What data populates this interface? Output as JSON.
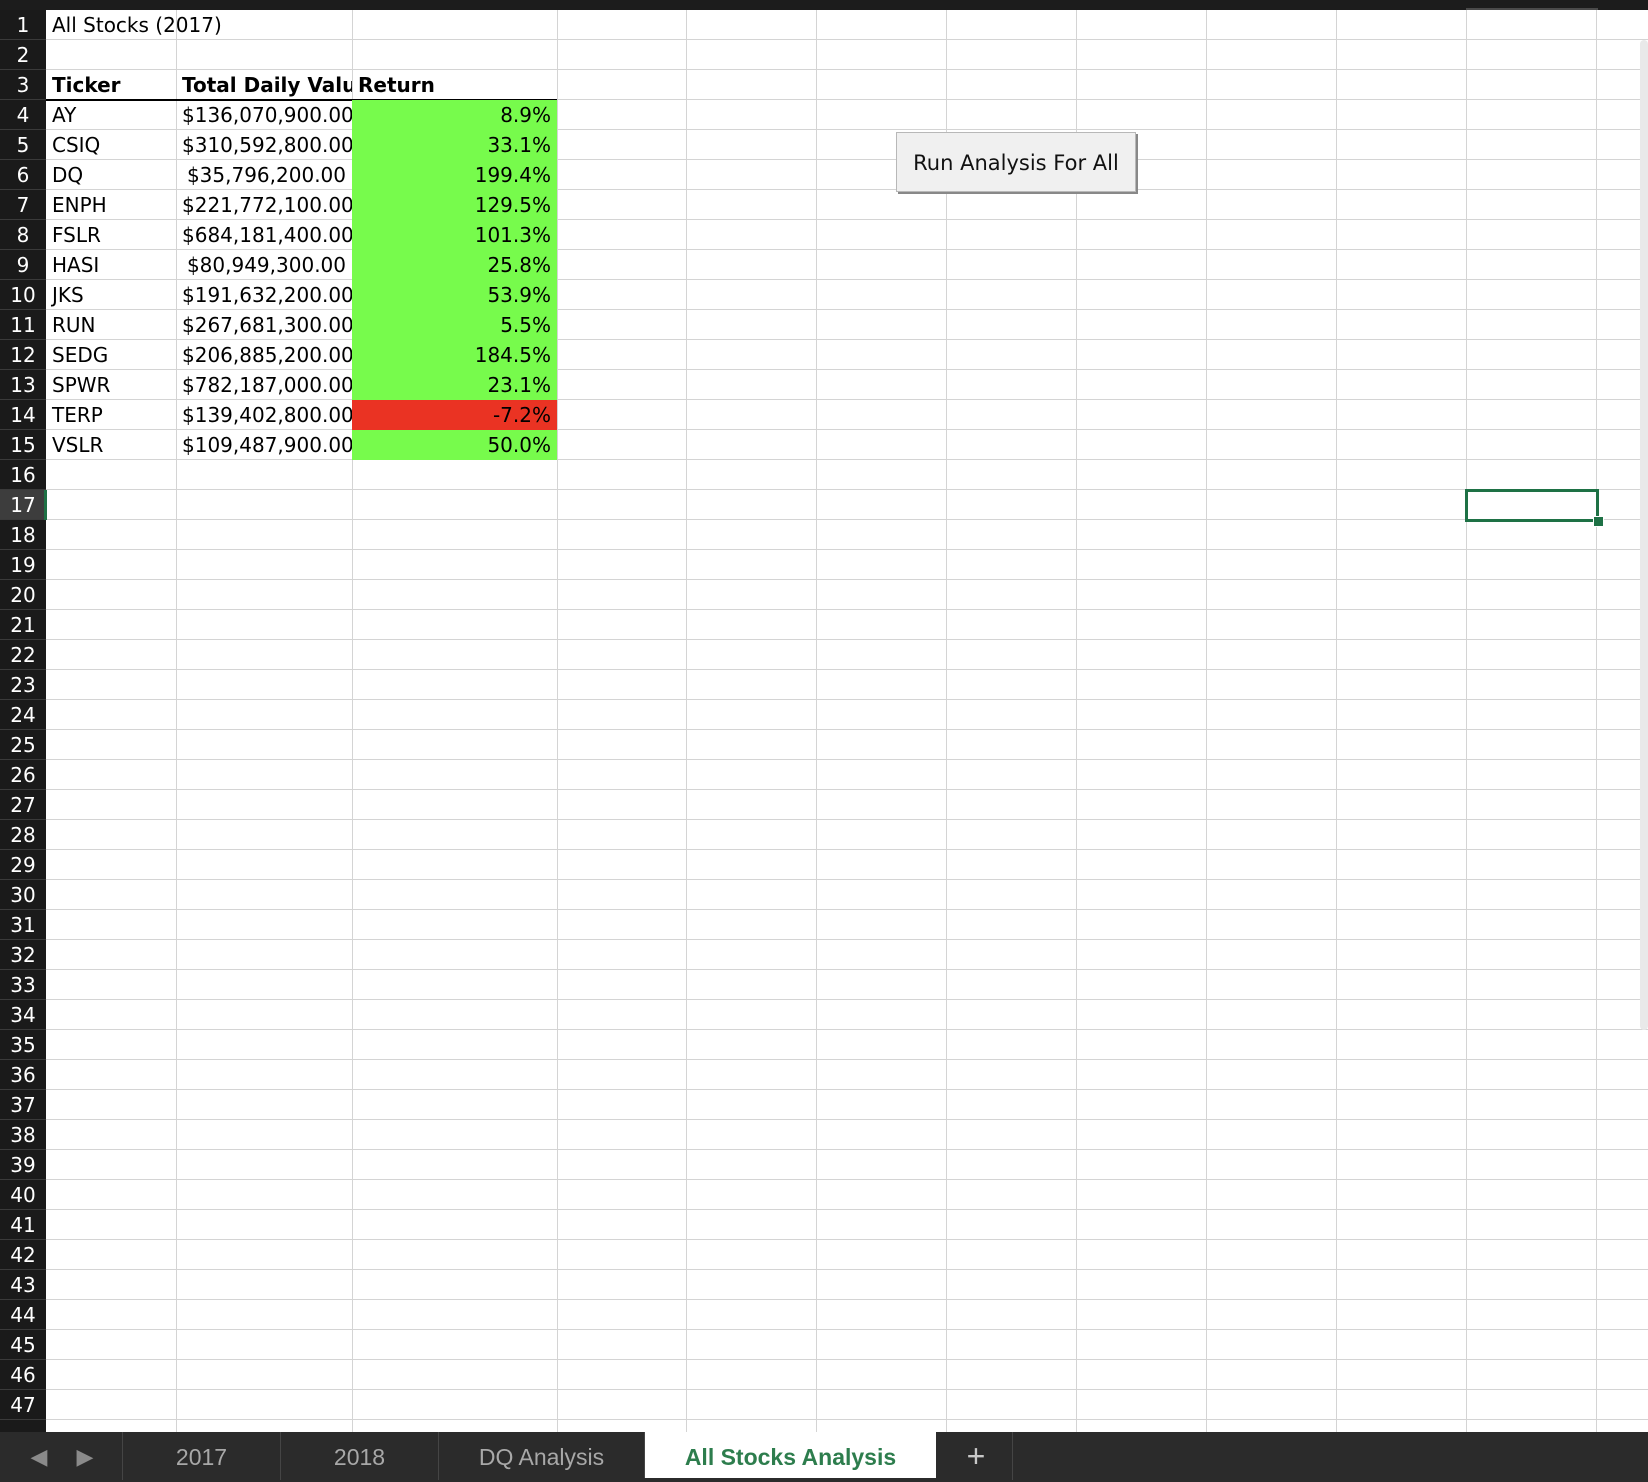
{
  "sheet": {
    "title": "All Stocks (2017)",
    "headers": [
      "Ticker",
      "Total Daily Value",
      "Return"
    ],
    "rows": [
      {
        "ticker": "AY",
        "total": "$136,070,900.00",
        "ret": "8.9%",
        "status": "positive"
      },
      {
        "ticker": "CSIQ",
        "total": "$310,592,800.00",
        "ret": "33.1%",
        "status": "positive"
      },
      {
        "ticker": "DQ",
        "total": "$35,796,200.00",
        "ret": "199.4%",
        "status": "positive"
      },
      {
        "ticker": "ENPH",
        "total": "$221,772,100.00",
        "ret": "129.5%",
        "status": "positive"
      },
      {
        "ticker": "FSLR",
        "total": "$684,181,400.00",
        "ret": "101.3%",
        "status": "positive"
      },
      {
        "ticker": "HASI",
        "total": "$80,949,300.00",
        "ret": "25.8%",
        "status": "positive"
      },
      {
        "ticker": "JKS",
        "total": "$191,632,200.00",
        "ret": "53.9%",
        "status": "positive"
      },
      {
        "ticker": "RUN",
        "total": "$267,681,300.00",
        "ret": "5.5%",
        "status": "positive"
      },
      {
        "ticker": "SEDG",
        "total": "$206,885,200.00",
        "ret": "184.5%",
        "status": "positive"
      },
      {
        "ticker": "SPWR",
        "total": "$782,187,000.00",
        "ret": "23.1%",
        "status": "positive"
      },
      {
        "ticker": "TERP",
        "total": "$139,402,800.00",
        "ret": "-7.2%",
        "status": "negative"
      },
      {
        "ticker": "VSLR",
        "total": "$109,487,900.00",
        "ret": "50.0%",
        "status": "positive"
      }
    ]
  },
  "row_numbers": [
    "1",
    "2",
    "3",
    "4",
    "5",
    "6",
    "7",
    "8",
    "9",
    "10",
    "11",
    "12",
    "13",
    "14",
    "15",
    "16",
    "17",
    "18",
    "19",
    "20",
    "21",
    "22",
    "23",
    "24",
    "25",
    "26",
    "27",
    "28",
    "29",
    "30",
    "31",
    "32",
    "33",
    "34",
    "35",
    "36",
    "37",
    "38",
    "39",
    "40",
    "41",
    "42",
    "43",
    "44",
    "45",
    "46",
    "47"
  ],
  "active_row": "17",
  "button": {
    "label": "Run Analysis For All"
  },
  "tabs": {
    "prev_icon": "◀",
    "next_icon": "▶",
    "items": [
      "2017",
      "2018",
      "DQ Analysis",
      "All Stocks Analysis"
    ],
    "active": "All Stocks Analysis",
    "add_icon": "+"
  },
  "colors": {
    "positive": "#77fb4c",
    "negative": "#ea3323",
    "accent": "#1e7145",
    "active_tab_text": "#2d7d4d"
  }
}
